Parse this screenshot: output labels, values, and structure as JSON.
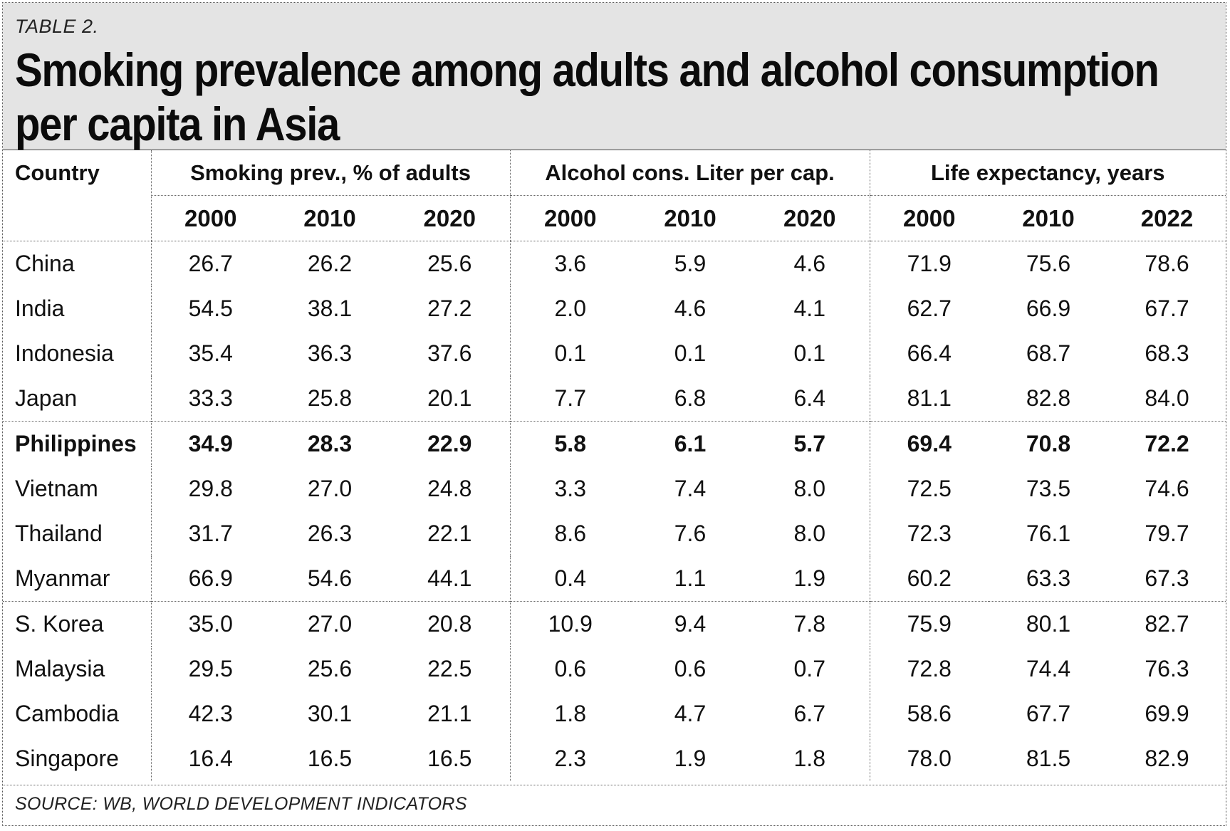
{
  "header": {
    "label": "TABLE 2.",
    "title": "Smoking prevalence among adults and alcohol consumption\nper capita in Asia"
  },
  "table": {
    "country_header": "Country",
    "groups": [
      {
        "label": "Smoking prev., % of adults",
        "years": [
          "2000",
          "2010",
          "2020"
        ]
      },
      {
        "label": "Alcohol cons. Liter per cap.",
        "years": [
          "2000",
          "2010",
          "2020"
        ]
      },
      {
        "label": "Life expectancy, years",
        "years": [
          "2000",
          "2010",
          "2022"
        ]
      }
    ],
    "rows": [
      {
        "country": "China",
        "values": [
          "26.7",
          "26.2",
          "25.6",
          "3.6",
          "5.9",
          "4.6",
          "71.9",
          "75.6",
          "78.6"
        ]
      },
      {
        "country": "India",
        "values": [
          "54.5",
          "38.1",
          "27.2",
          "2.0",
          "4.6",
          "4.1",
          "62.7",
          "66.9",
          "67.7"
        ]
      },
      {
        "country": "Indonesia",
        "values": [
          "35.4",
          "36.3",
          "37.6",
          "0.1",
          "0.1",
          "0.1",
          "66.4",
          "68.7",
          "68.3"
        ]
      },
      {
        "country": "Japan",
        "values": [
          "33.3",
          "25.8",
          "20.1",
          "7.7",
          "6.8",
          "6.4",
          "81.1",
          "82.8",
          "84.0"
        ]
      },
      {
        "country": "Philippines",
        "values": [
          "34.9",
          "28.3",
          "22.9",
          "5.8",
          "6.1",
          "5.7",
          "69.4",
          "70.8",
          "72.2"
        ]
      },
      {
        "country": "Vietnam",
        "values": [
          "29.8",
          "27.0",
          "24.8",
          "3.3",
          "7.4",
          "8.0",
          "72.5",
          "73.5",
          "74.6"
        ]
      },
      {
        "country": "Thailand",
        "values": [
          "31.7",
          "26.3",
          "22.1",
          "8.6",
          "7.6",
          "8.0",
          "72.3",
          "76.1",
          "79.7"
        ]
      },
      {
        "country": "Myanmar",
        "values": [
          "66.9",
          "54.6",
          "44.1",
          "0.4",
          "1.1",
          "1.9",
          "60.2",
          "63.3",
          "67.3"
        ]
      },
      {
        "country": "S. Korea",
        "values": [
          "35.0",
          "27.0",
          "20.8",
          "10.9",
          "9.4",
          "7.8",
          "75.9",
          "80.1",
          "82.7"
        ]
      },
      {
        "country": "Malaysia",
        "values": [
          "29.5",
          "25.6",
          "22.5",
          "0.6",
          "0.6",
          "0.7",
          "72.8",
          "74.4",
          "76.3"
        ]
      },
      {
        "country": "Cambodia",
        "values": [
          "42.3",
          "30.1",
          "21.1",
          "1.8",
          "4.7",
          "6.7",
          "58.6",
          "67.7",
          "69.9"
        ]
      },
      {
        "country": "Singapore",
        "values": [
          "16.4",
          "16.5",
          "16.5",
          "2.3",
          "1.9",
          "1.8",
          "78.0",
          "81.5",
          "82.9"
        ]
      }
    ]
  },
  "footer": {
    "source": "SOURCE: WB, WORLD DEVELOPMENT INDICATORS"
  },
  "colors": {
    "header_bg": "#e4e4e4",
    "text": "#111111"
  }
}
